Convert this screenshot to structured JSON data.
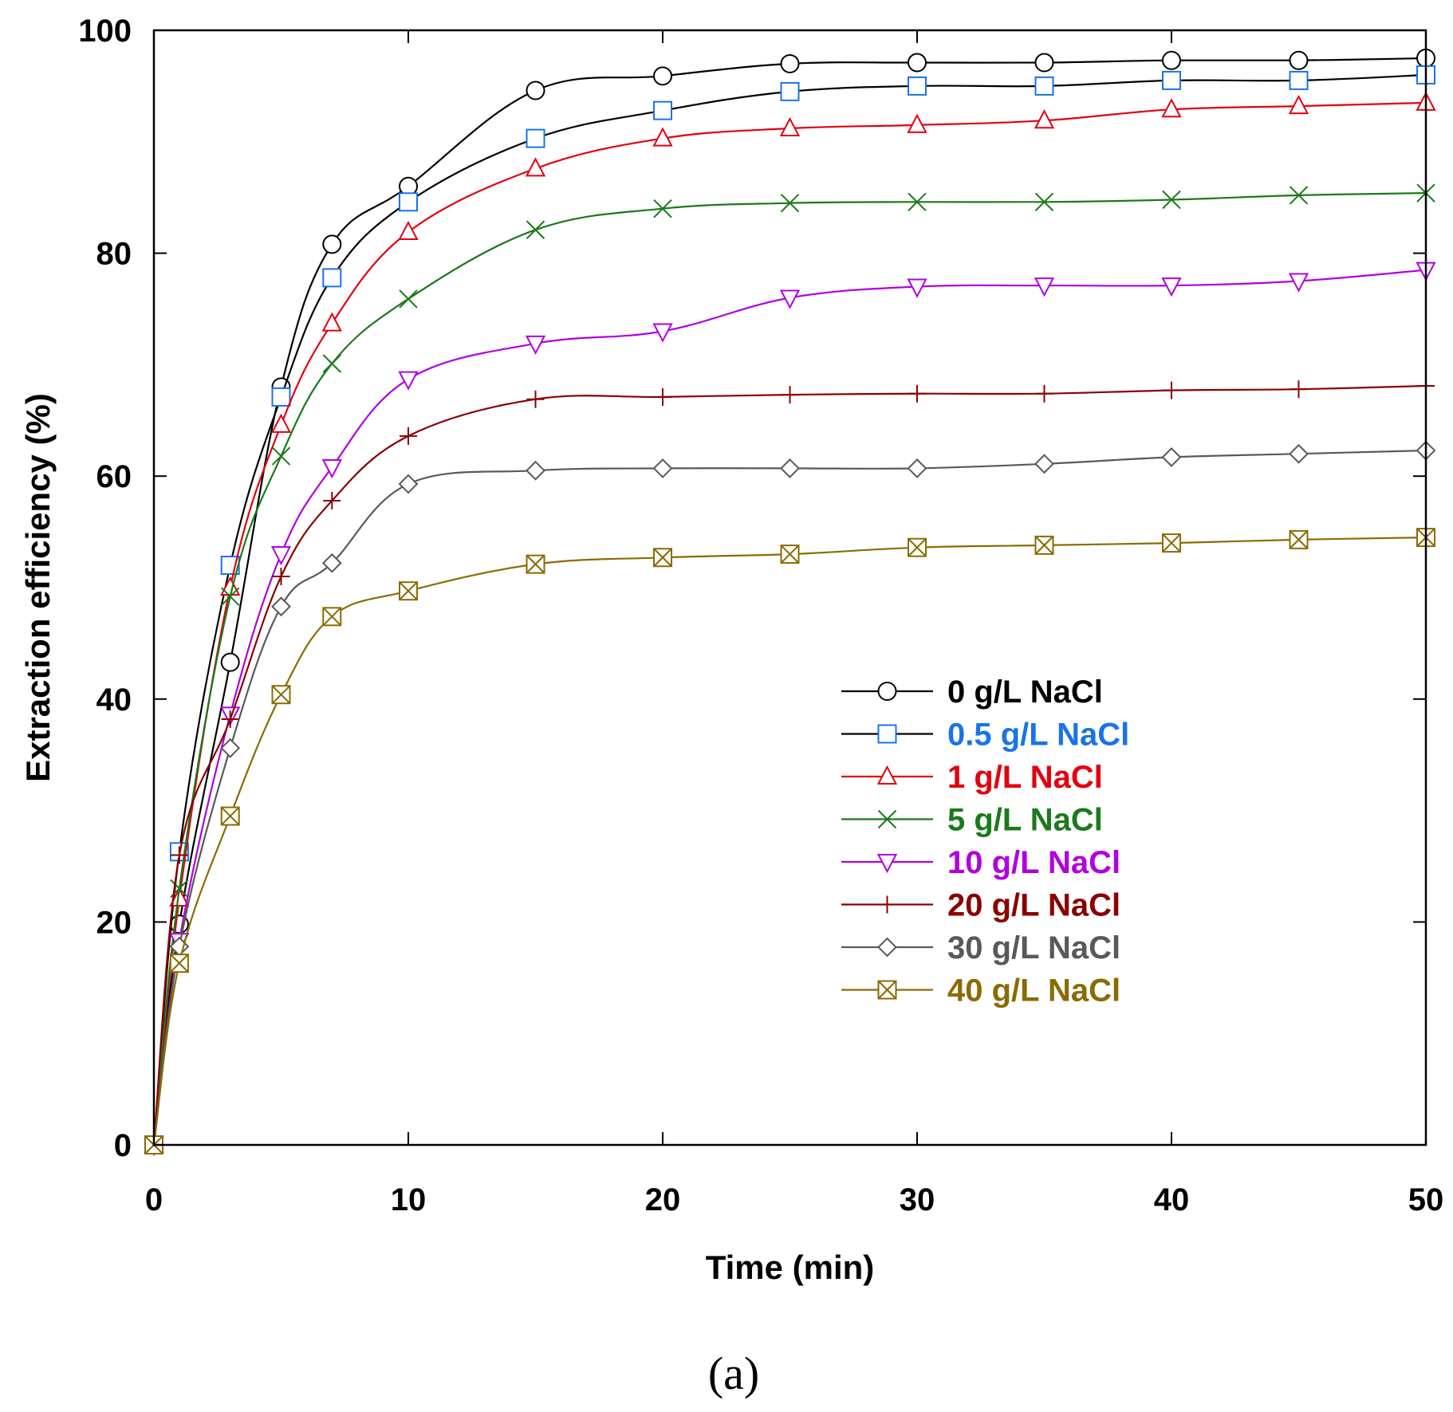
{
  "chart_data": {
    "type": "line",
    "title": "",
    "caption": "(a)",
    "xlabel": "Time (min)",
    "ylabel": "Extraction efficiency (%)",
    "xlim": [
      0,
      50
    ],
    "ylim": [
      0,
      100
    ],
    "xticks": [
      "0",
      "10",
      "20",
      "30",
      "40",
      "50"
    ],
    "yticks": [
      "0",
      "20",
      "40",
      "60",
      "80",
      "100"
    ],
    "x": [
      0,
      1,
      3,
      5,
      7,
      10,
      15,
      20,
      25,
      30,
      35,
      40,
      45,
      50
    ],
    "legend_position": "center-right",
    "series": [
      {
        "name": "0 g/L NaCl",
        "color": "#000000",
        "text_color": "#000000",
        "marker": "circle",
        "values": [
          0,
          19.8,
          43.3,
          68.0,
          80.8,
          86.0,
          94.6,
          95.9,
          97.0,
          97.1,
          97.1,
          97.3,
          97.3,
          97.5
        ]
      },
      {
        "name": "0.5 g/L NaCl",
        "color": "#000000",
        "text_color": "#1a73e8",
        "marker_color": "#1a73e8",
        "marker": "square",
        "values": [
          0,
          26.3,
          52.0,
          67.1,
          77.8,
          84.6,
          90.3,
          92.8,
          94.5,
          95.0,
          95.0,
          95.5,
          95.5,
          96.0
        ]
      },
      {
        "name": "1 g/L NaCl",
        "color": "#e3000f",
        "text_color": "#e3000f",
        "marker": "triangle-up",
        "values": [
          0,
          22.1,
          50.0,
          64.6,
          73.7,
          81.9,
          87.6,
          90.3,
          91.2,
          91.5,
          91.9,
          92.9,
          93.2,
          93.5
        ]
      },
      {
        "name": "5 g/L NaCl",
        "color": "#1a7a1a",
        "text_color": "#1a7a1a",
        "marker": "x",
        "values": [
          0,
          23.0,
          49.2,
          61.8,
          70.1,
          75.9,
          82.1,
          84.0,
          84.5,
          84.6,
          84.6,
          84.8,
          85.2,
          85.4
        ]
      },
      {
        "name": "10 g/L NaCl",
        "color": "#b000e0",
        "text_color": "#b000e0",
        "marker": "triangle-down",
        "values": [
          0,
          18.3,
          38.6,
          53.0,
          60.8,
          68.7,
          71.9,
          73.0,
          76.0,
          77.0,
          77.1,
          77.1,
          77.5,
          78.5
        ]
      },
      {
        "name": "20 g/L NaCl",
        "color": "#8b0000",
        "text_color": "#8b0000",
        "marker": "plus",
        "values": [
          0,
          26.0,
          38.2,
          51.0,
          57.8,
          63.6,
          66.9,
          67.1,
          67.3,
          67.4,
          67.4,
          67.7,
          67.8,
          68.1
        ]
      },
      {
        "name": "30 g/L NaCl",
        "color": "#595959",
        "text_color": "#595959",
        "marker": "diamond",
        "values": [
          0,
          17.8,
          35.6,
          48.3,
          52.2,
          59.3,
          60.5,
          60.7,
          60.7,
          60.7,
          61.1,
          61.7,
          62.0,
          62.3
        ]
      },
      {
        "name": "40 g/L NaCl",
        "color": "#8b6b00",
        "text_color": "#8b6b00",
        "marker": "boxed-x",
        "values": [
          0,
          16.3,
          29.5,
          40.4,
          47.4,
          49.7,
          52.1,
          52.7,
          53.0,
          53.6,
          53.8,
          54.0,
          54.3,
          54.5
        ]
      }
    ]
  }
}
